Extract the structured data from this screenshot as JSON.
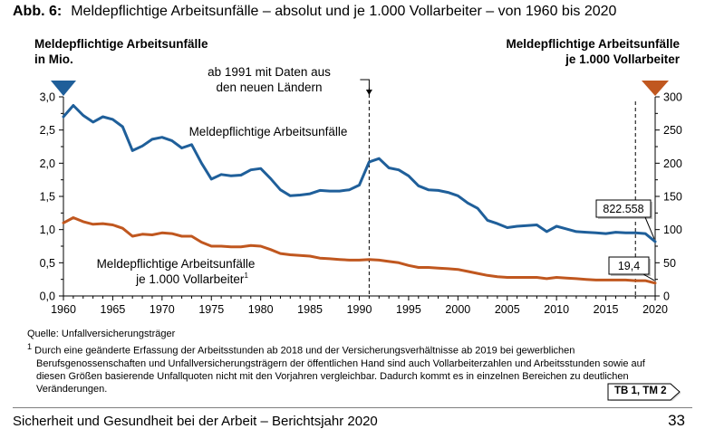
{
  "header": {
    "fig_label": "Abb. 6:",
    "fig_title": "Meldepflichtige Arbeitsunfälle – absolut und je 1.000 Vollarbeiter – von 1960 bis 2020"
  },
  "chart_data": {
    "type": "line",
    "left_axis_label": [
      "Meldepflichtige Arbeitsunfälle",
      "in Mio."
    ],
    "right_axis_label": [
      "Meldepflichtige Arbeitsunfälle",
      "je 1.000 Vollarbeiter"
    ],
    "x_ticks": [
      "1960",
      "1965",
      "1970",
      "1975",
      "1980",
      "1985",
      "1990",
      "1995",
      "2000",
      "2005",
      "2010",
      "2015",
      "2020"
    ],
    "y_left_ticks": [
      "0,0",
      "0,5",
      "1,0",
      "1,5",
      "2,0",
      "2,5",
      "3,0"
    ],
    "y_right_ticks": [
      "0",
      "50",
      "100",
      "150",
      "200",
      "250",
      "300"
    ],
    "ylim_left": [
      0,
      3
    ],
    "ylim_right": [
      0,
      300
    ],
    "xlim": [
      1960,
      2020
    ],
    "annotation": {
      "year": 1991,
      "lines": [
        "ab 1991 mit Daten aus",
        "den neuen Ländern"
      ]
    },
    "marker_year": 2018,
    "colors": {
      "absolute": "#1f5f9a",
      "rate": "#c0571f"
    },
    "series": [
      {
        "name": "Meldepflichtige Arbeitsunfälle",
        "axis": "left",
        "label_lines": [
          "Meldepflichtige Arbeitsunfälle"
        ],
        "x": [
          1960,
          1961,
          1962,
          1963,
          1964,
          1965,
          1966,
          1967,
          1968,
          1969,
          1970,
          1971,
          1972,
          1973,
          1974,
          1975,
          1976,
          1977,
          1978,
          1979,
          1980,
          1981,
          1982,
          1983,
          1984,
          1985,
          1986,
          1987,
          1988,
          1989,
          1990,
          1991,
          1992,
          1993,
          1994,
          1995,
          1996,
          1997,
          1998,
          1999,
          2000,
          2001,
          2002,
          2003,
          2004,
          2005,
          2006,
          2007,
          2008,
          2009,
          2010,
          2011,
          2012,
          2013,
          2014,
          2015,
          2016,
          2017,
          2018,
          2019,
          2020
        ],
        "values": [
          2.7,
          2.87,
          2.72,
          2.62,
          2.7,
          2.66,
          2.55,
          2.19,
          2.26,
          2.36,
          2.39,
          2.34,
          2.23,
          2.28,
          2.0,
          1.76,
          1.83,
          1.81,
          1.82,
          1.9,
          1.92,
          1.77,
          1.6,
          1.51,
          1.52,
          1.54,
          1.59,
          1.58,
          1.58,
          1.6,
          1.67,
          2.02,
          2.07,
          1.93,
          1.9,
          1.81,
          1.66,
          1.6,
          1.59,
          1.56,
          1.51,
          1.4,
          1.32,
          1.14,
          1.09,
          1.03,
          1.05,
          1.06,
          1.07,
          0.97,
          1.05,
          1.01,
          0.97,
          0.96,
          0.95,
          0.94,
          0.96,
          0.95,
          0.95,
          0.94,
          0.82
        ],
        "end_label": "822.558"
      },
      {
        "name": "Meldepflichtige Arbeitsunfälle je 1.000 Vollarbeiter",
        "axis": "right",
        "label_lines": [
          "Meldepflichtige Arbeitsunfälle",
          "je 1.000 Vollarbeiter"
        ],
        "label_sup": "1",
        "x": [
          1960,
          1961,
          1962,
          1963,
          1964,
          1965,
          1966,
          1967,
          1968,
          1969,
          1970,
          1971,
          1972,
          1973,
          1974,
          1975,
          1976,
          1977,
          1978,
          1979,
          1980,
          1981,
          1982,
          1983,
          1984,
          1985,
          1986,
          1987,
          1988,
          1989,
          1990,
          1991,
          1992,
          1993,
          1994,
          1995,
          1996,
          1997,
          1998,
          1999,
          2000,
          2001,
          2002,
          2003,
          2004,
          2005,
          2006,
          2007,
          2008,
          2009,
          2010,
          2011,
          2012,
          2013,
          2014,
          2015,
          2016,
          2017,
          2018,
          2019,
          2020
        ],
        "values": [
          110,
          118,
          112,
          108,
          109,
          107,
          102,
          90,
          93,
          92,
          95,
          94,
          90,
          90,
          81,
          75,
          75,
          74,
          74,
          76,
          75,
          70,
          64,
          62,
          61,
          60,
          57,
          56,
          55,
          54,
          54,
          55,
          54,
          52,
          50,
          46,
          43,
          43,
          42,
          41,
          40,
          37,
          34,
          31,
          29,
          28,
          28,
          28,
          28,
          26,
          28,
          27,
          26,
          25,
          24,
          24,
          24,
          24,
          23,
          23,
          19.4
        ],
        "end_label": "19,4"
      }
    ]
  },
  "source": "Quelle: Unfallversicherungsträger",
  "footnote_marker": "1",
  "footnote_text": "Durch eine geänderte Erfassung der Arbeitsstunden ab 2018 und der Versicherungsverhältnisse ab 2019 bei gewerblichen Berufsgenossenschaften und Unfallversicherungsträgern der öffentlichen Hand sind auch Vollarbeiterzahlen und Arbeitsstunden sowie auf diesen Größen basierende Unfallquoten nicht mit den Vorjahren vergleichbar. Dadurch kommt es in einzelnen Bereichen zu deutlichen Veränderungen.",
  "table_tag": "TB 1, TM 2",
  "footer": {
    "text": "Sicherheit und Gesundheit bei der Arbeit – Berichtsjahr 2020",
    "page_number": "33"
  }
}
